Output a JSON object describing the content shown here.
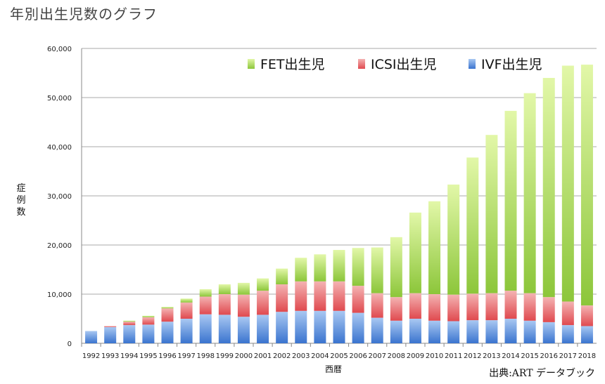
{
  "chart_data": {
    "type": "bar",
    "stacked": true,
    "title": "年別出生児数のグラフ",
    "xlabel": "西暦",
    "ylabel": "症例数",
    "source": "出典:ART データブック",
    "ylim": [
      0,
      60000
    ],
    "yticks": [
      0,
      10000,
      20000,
      30000,
      40000,
      50000,
      60000
    ],
    "ytick_labels": [
      "0",
      "10,000",
      "20,000",
      "30,000",
      "40,000",
      "50,000",
      "60,000"
    ],
    "grid": true,
    "legend_position": "top-right",
    "categories": [
      "1992",
      "1993",
      "1994",
      "1995",
      "1996",
      "1997",
      "1998",
      "1999",
      "2000",
      "2001",
      "2002",
      "2003",
      "2004",
      "2005",
      "2006",
      "2007",
      "2008",
      "2009",
      "2010",
      "2011",
      "2012",
      "2013",
      "2014",
      "2015",
      "2016",
      "2017",
      "2018"
    ],
    "series": [
      {
        "name": "IVF出生児",
        "color": "#4f86d9",
        "values": [
          2500,
          3300,
          3700,
          3800,
          4400,
          5000,
          5900,
          5800,
          5400,
          5800,
          6400,
          6600,
          6600,
          6600,
          6200,
          5200,
          4600,
          5000,
          4600,
          4500,
          4700,
          4700,
          5000,
          4600,
          4300,
          3700,
          3500
        ]
      },
      {
        "name": "ICSI出生児",
        "color": "#e85a5e",
        "values": [
          0,
          200,
          700,
          1500,
          2700,
          3300,
          3600,
          4200,
          4500,
          4900,
          5600,
          6000,
          6000,
          6000,
          5500,
          5000,
          4800,
          5200,
          5400,
          5400,
          5400,
          5500,
          5700,
          5600,
          5100,
          4800,
          4200
        ]
      },
      {
        "name": "FET出生児",
        "color": "#9acd3a",
        "values": [
          0,
          0,
          200,
          300,
          300,
          800,
          1500,
          2000,
          2400,
          2500,
          3200,
          4800,
          5500,
          6400,
          7700,
          9300,
          12200,
          16400,
          18900,
          22400,
          27700,
          32200,
          36600,
          40700,
          44600,
          48000,
          49000
        ]
      }
    ],
    "legend_order": [
      "FET出生児",
      "ICSI出生児",
      "IVF出生児"
    ]
  }
}
